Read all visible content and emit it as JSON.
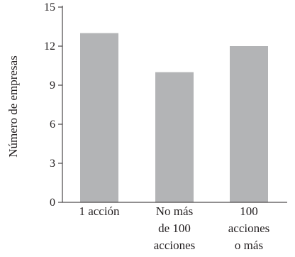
{
  "chart_data": {
    "type": "bar",
    "title": "",
    "xlabel": "",
    "ylabel": "Número de empresas",
    "ylim": [
      0,
      15
    ],
    "yticks": [
      0,
      3,
      6,
      9,
      12,
      15
    ],
    "grid": false,
    "bar_color": "#b3b4b6",
    "categories": [
      [
        "1 acción"
      ],
      [
        "No más",
        "de 100",
        "acciones"
      ],
      [
        "100",
        "acciones",
        "o más"
      ]
    ],
    "values": [
      13,
      10,
      12
    ]
  }
}
